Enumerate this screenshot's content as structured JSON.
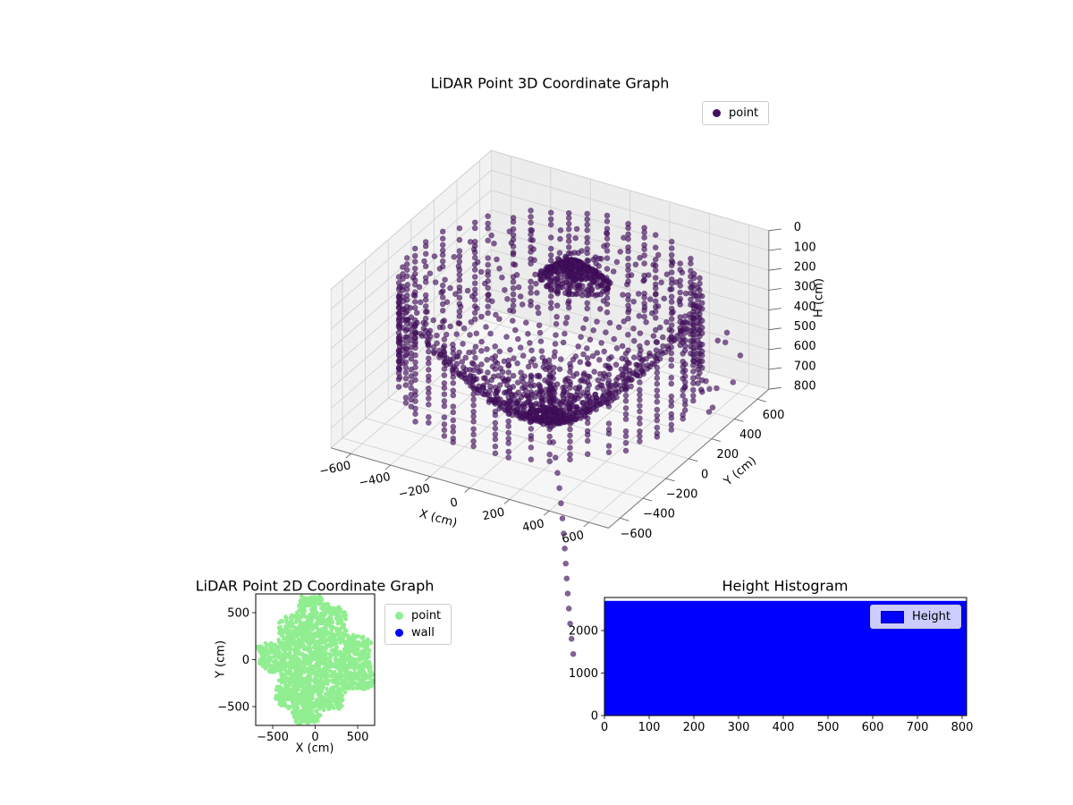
{
  "figure": {
    "background": "#ffffff"
  },
  "chart_data": [
    {
      "id": "lidar-3d",
      "type": "scatter",
      "projection": "3d",
      "title": "LiDAR Point 3D Coordinate Graph",
      "xlabel": "X (cm)",
      "ylabel": "Y (cm)",
      "zlabel": "H (cm)",
      "xlim": [
        -700,
        700
      ],
      "ylim": [
        -700,
        700
      ],
      "zlim": [
        0,
        800
      ],
      "z_axis_inverted": true,
      "xticks": [
        -600,
        -400,
        -200,
        0,
        200,
        400,
        600
      ],
      "yticks": [
        -600,
        -400,
        -200,
        0,
        200,
        400,
        600
      ],
      "zticks": [
        0,
        100,
        200,
        300,
        400,
        500,
        600,
        700,
        800
      ],
      "grid": true,
      "view": {
        "elev": 30,
        "azim": -60
      },
      "legend": {
        "position": "upper right",
        "entries": [
          {
            "label": "point",
            "color": "#45105f",
            "marker": "circle"
          }
        ]
      },
      "point_style": {
        "color": "#45105f",
        "alpha": 0.65,
        "size": 3
      },
      "point_cloud": {
        "description": "LiDAR sweep: bowl-shaped radial ribs converging at a dense center stem near H=800, vertical wall-point columns around the rim, a dense ceiling cluster above center near H=35-140, sparse right-side outliers, and a stray tail of points exiting the lower right of the axes",
        "ribs": {
          "count": 40,
          "points_per_rib": 22,
          "r_min": 30,
          "r_max": 640,
          "h_center": 780,
          "h_rim": 210
        },
        "wall_columns": {
          "count": 48,
          "radius": 660,
          "h_min": 140,
          "h_max": 620,
          "h_step": 30
        },
        "ceiling_cluster": {
          "center_xy": [
            60,
            110
          ],
          "rings": 7,
          "ring_step": 20,
          "h_min": 35,
          "h_max": 140,
          "extra_points": 90
        },
        "center_stem": {
          "points": 30,
          "r_max": 25,
          "h_min": 500,
          "h_max": 790
        },
        "tail": {
          "points": 16,
          "x_range": [
            40,
            520
          ],
          "y_range": [
            -60,
            -680
          ],
          "h_range": [
            800,
            1500
          ]
        },
        "outliers": {
          "count": 12,
          "r_range": [
            720,
            860
          ],
          "h_range": [
            250,
            650
          ]
        }
      }
    },
    {
      "id": "lidar-2d",
      "type": "scatter",
      "title": "LiDAR Point 2D Coordinate Graph",
      "xlabel": "X (cm)",
      "ylabel": "Y (cm)",
      "xlim": [
        -700,
        700
      ],
      "ylim": [
        -700,
        700
      ],
      "xticks": [
        -500,
        0,
        500
      ],
      "yticks": [
        -500,
        0,
        500
      ],
      "legend": {
        "position": "upper right outside",
        "entries": [
          {
            "label": "point",
            "color": "#90ee90",
            "marker": "circle"
          },
          {
            "label": "wall",
            "color": "#0000ff",
            "marker": "circle"
          }
        ]
      },
      "series": [
        {
          "name": "point",
          "color": "#90ee90",
          "size": 2.3,
          "count": 3000,
          "blob_base_radius": 620,
          "blob_noise": [
            90,
            60
          ],
          "description": "dense light-green blob covering nearly the whole axes with ragged edges"
        },
        {
          "name": "wall",
          "color": "#0000ff",
          "visible_points": 0,
          "description": "wall points not visibly distinct (hidden beneath point blob)"
        }
      ]
    },
    {
      "id": "height-histogram",
      "type": "bar",
      "title": "Height Histogram",
      "xlim": [
        0,
        810
      ],
      "ylim": [
        0,
        2780
      ],
      "xticks": [
        0,
        100,
        200,
        300,
        400,
        500,
        600,
        700,
        800
      ],
      "yticks": [
        0,
        1000,
        2000
      ],
      "legend": {
        "position": "upper right",
        "entries": [
          {
            "label": "Height",
            "color": "#0000ff",
            "marker": "square"
          }
        ]
      },
      "bins": {
        "start": 0,
        "end": 810,
        "width": 10
      },
      "counts_uniform": 2700,
      "bar_color": "#0000ff",
      "description": "solid blue block: every height bin from 0 to 810 has a count of about 2700"
    }
  ]
}
